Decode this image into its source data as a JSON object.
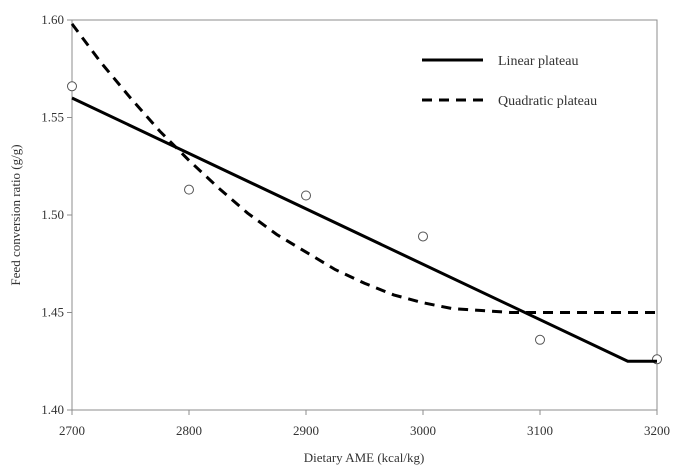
{
  "chart_data": {
    "type": "line",
    "title": "",
    "xlabel": "Dietary AME (kcal/kg)",
    "ylabel": "Feed conversion ratio (g/g)",
    "xlim": [
      2700,
      3200
    ],
    "ylim": [
      1.4,
      1.6
    ],
    "x_ticks": [
      2700,
      2800,
      2900,
      3000,
      3100,
      3200
    ],
    "x_tick_labels": [
      "2700",
      "2800",
      "2900",
      "3000",
      "3100",
      "3200"
    ],
    "y_ticks": [
      1.4,
      1.45,
      1.5,
      1.55,
      1.6
    ],
    "y_tick_labels": [
      "1.40",
      "1.45",
      "1.50",
      "1.55",
      "1.60"
    ],
    "grid": false,
    "legend_position": "top-right",
    "observed_points": {
      "x": [
        2700,
        2800,
        2900,
        3000,
        3100,
        3200
      ],
      "y": [
        1.566,
        1.513,
        1.51,
        1.489,
        1.436,
        1.426
      ],
      "marker": "open-circle"
    },
    "series": [
      {
        "name": "Linear plateau",
        "style": "solid",
        "color": "#000000",
        "x": [
          2700,
          3175,
          3200
        ],
        "y": [
          1.56,
          1.425,
          1.425
        ]
      },
      {
        "name": "Quadratic plateau",
        "style": "dashed",
        "color": "#000000",
        "x": [
          2700,
          2725,
          2750,
          2775,
          2800,
          2825,
          2850,
          2875,
          2900,
          2925,
          2950,
          2975,
          3000,
          3025,
          3050,
          3075,
          3200
        ],
        "y": [
          1.598,
          1.578,
          1.56,
          1.543,
          1.528,
          1.514,
          1.501,
          1.49,
          1.481,
          1.472,
          1.465,
          1.459,
          1.455,
          1.452,
          1.451,
          1.45,
          1.45
        ]
      }
    ]
  }
}
